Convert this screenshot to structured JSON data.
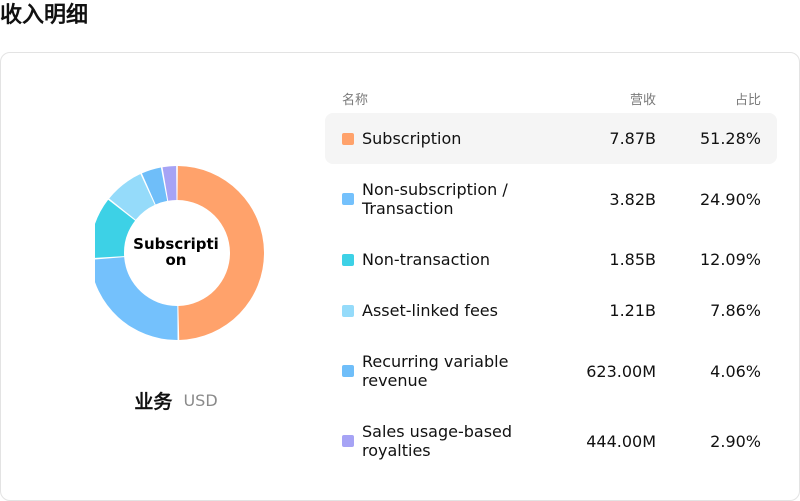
{
  "page": {
    "title": "收入明细"
  },
  "donut": {
    "center_label": "Subscription",
    "caption_title": "业务",
    "caption_unit": "USD"
  },
  "table": {
    "headers": {
      "name": "名称",
      "revenue": "营收",
      "share": "占比"
    }
  },
  "chart_data": {
    "type": "pie",
    "variant": "donut",
    "categories": [
      "Subscription",
      "Non-subscription / Transaction",
      "Non-transaction",
      "Asset-linked fees",
      "Recurring variable revenue",
      "Sales usage-based royalties"
    ],
    "values": [
      51.28,
      24.9,
      12.09,
      7.86,
      4.06,
      2.9
    ],
    "revenue_labels": [
      "7.87B",
      "3.82B",
      "1.85B",
      "1.21B",
      "623.00M",
      "444.00M"
    ],
    "share_labels": [
      "51.28%",
      "24.90%",
      "12.09%",
      "7.86%",
      "4.06%",
      "2.90%"
    ],
    "colors": [
      "#FFA26B",
      "#74C1FC",
      "#3DD1E6",
      "#95DBFA",
      "#6FBEF9",
      "#A6A3F5"
    ],
    "highlighted": 0
  }
}
